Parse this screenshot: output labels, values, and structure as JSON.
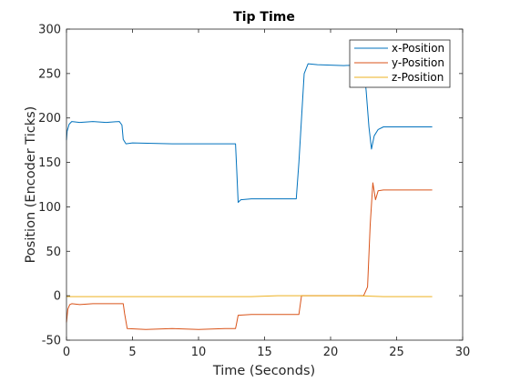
{
  "chart_data": {
    "type": "line",
    "title": "Tip Time",
    "xlabel": "Time (Seconds)",
    "ylabel": "Position (Encoder Ticks)",
    "xlim": [
      0,
      30
    ],
    "ylim": [
      -50,
      300
    ],
    "xticks": [
      "0",
      "5",
      "10",
      "15",
      "20",
      "25",
      "30"
    ],
    "yticks": [
      "-50",
      "0",
      "50",
      "100",
      "150",
      "200",
      "250",
      "300"
    ],
    "grid": false,
    "legend_position": "top-right",
    "series": [
      {
        "name": "x-Position",
        "color": "#0072BD",
        "x": [
          0,
          0.05,
          0.2,
          0.4,
          1,
          2,
          3,
          4,
          4.2,
          4.3,
          4.5,
          5,
          8,
          12,
          12.8,
          12.9,
          13.0,
          13.2,
          14,
          17.4,
          17.6,
          18.0,
          18.3,
          19,
          21,
          22.5,
          22.7,
          22.9,
          23.1,
          23.3,
          23.6,
          24,
          25,
          27.7
        ],
        "y": [
          175,
          185,
          193,
          196,
          195,
          196,
          195,
          196,
          192,
          176,
          171,
          172,
          171,
          171,
          171,
          140,
          105,
          108,
          109,
          109,
          150,
          250,
          261,
          260,
          259,
          260,
          230,
          190,
          165,
          180,
          187,
          190,
          190,
          190
        ]
      },
      {
        "name": "y-Position",
        "color": "#D95319",
        "x": [
          0,
          0.1,
          0.25,
          0.4,
          1,
          2,
          3,
          4.3,
          4.4,
          4.6,
          6,
          8,
          10,
          12,
          12.8,
          12.9,
          13.0,
          14,
          16,
          17.6,
          17.8,
          18,
          19,
          21,
          22.5,
          22.8,
          23.0,
          23.2,
          23.4,
          23.6,
          24,
          25,
          27.7
        ],
        "y": [
          -30,
          -15,
          -10,
          -9,
          -10,
          -9,
          -9,
          -9,
          -20,
          -37,
          -38,
          -37,
          -38,
          -37,
          -37,
          -30,
          -22,
          -21,
          -21,
          -21,
          0,
          0,
          0,
          0,
          0,
          10,
          80,
          127,
          108,
          118,
          119,
          119,
          119
        ]
      },
      {
        "name": "z-Position",
        "color": "#EDB120",
        "x": [
          0,
          2,
          4,
          6,
          8,
          10,
          12,
          14,
          16,
          18,
          20,
          22,
          24,
          26,
          27.7
        ],
        "y": [
          -1,
          -1,
          -1,
          -1,
          -1,
          -1,
          -1,
          -1,
          0,
          0,
          0,
          0,
          -1,
          -1,
          -1
        ]
      }
    ]
  }
}
